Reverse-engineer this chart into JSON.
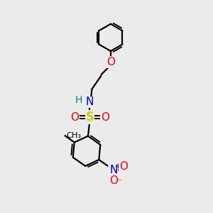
{
  "background_color": "#ebebeb",
  "line_color": "#000000",
  "line_width": 1.6,
  "atom_colors": {
    "N": "#0000cc",
    "O": "#ff0000",
    "S": "#cccc00",
    "H": "#008080",
    "C": "#000000"
  },
  "font_size": 10,
  "figsize": [
    3.0,
    3.0
  ],
  "dpi": 100,
  "xlim": [
    0,
    10
  ],
  "ylim": [
    0,
    10
  ]
}
